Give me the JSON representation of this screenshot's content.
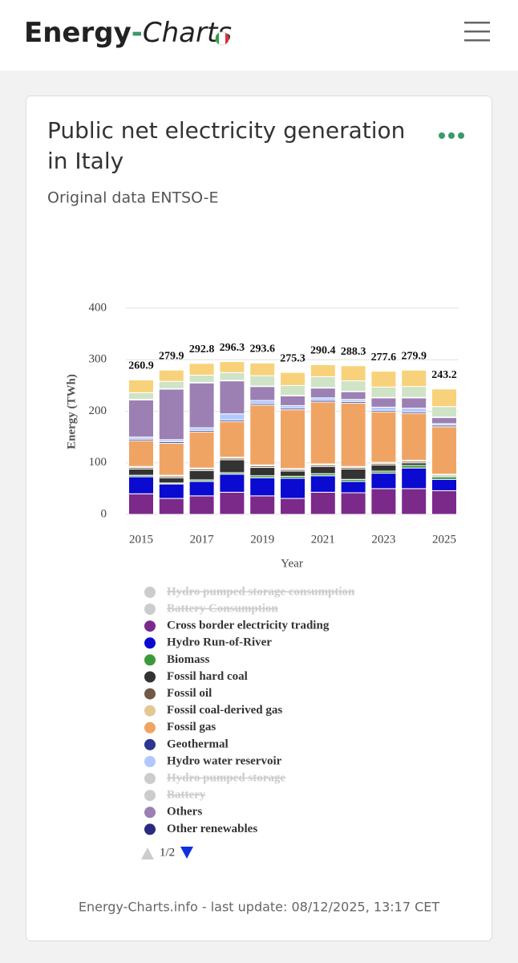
{
  "header": {
    "logo": [
      "Energy",
      "-",
      "Charts"
    ]
  },
  "chart_data": {
    "type": "stacked_bar",
    "title": [
      "Public net electricity generation",
      "in Italy"
    ],
    "subtitle": "Original data ENTSO-E",
    "x_label": "Year",
    "y_label": "Energy (TWh)",
    "categories": [
      "2015",
      null,
      "2017",
      null,
      "2019",
      null,
      "2021",
      null,
      "2023",
      null,
      "2025"
    ],
    "ylim": [
      0,
      400
    ],
    "yticks": [
      0,
      100,
      200,
      300,
      400
    ],
    "grid": true,
    "totals": [
      260.9,
      279.9,
      292.8,
      296.3,
      293.6,
      275.3,
      290.4,
      288.3,
      277.6,
      279.9,
      243.2
    ],
    "series": [
      {
        "name": "Hydro pumped storage consumption",
        "visible": false
      },
      {
        "name": "Battery Consumption",
        "visible": false
      },
      {
        "name": "Cross border electricity trading",
        "color": "#7b2a8a",
        "values": [
          40,
          31,
          36,
          43,
          36,
          31,
          43,
          42,
          50,
          50,
          46
        ]
      },
      {
        "name": "Hydro Run-of-River",
        "color": "#0a0ad0",
        "values": [
          33,
          28,
          28,
          35,
          35,
          39,
          32,
          22,
          30,
          40,
          22
        ]
      },
      {
        "name": "Biomass",
        "color": "#3a9a3a",
        "values": [
          3,
          2,
          3,
          3,
          4,
          4,
          4,
          4,
          4,
          5,
          5
        ]
      },
      {
        "name": "Fossil hard coal",
        "color": "#333333",
        "values": [
          12,
          10,
          18,
          25,
          16,
          10,
          14,
          20,
          12,
          5,
          2
        ]
      },
      {
        "name": "Fossil oil",
        "color": "#705a45",
        "values": [
          3,
          3,
          3,
          3,
          3,
          3,
          3,
          3,
          3,
          3,
          2
        ]
      },
      {
        "name": "Fossil coal-derived gas",
        "color": "#e0c890",
        "values": [
          2,
          2,
          2,
          2,
          2,
          2,
          2,
          2,
          2,
          2,
          1
        ]
      },
      {
        "name": "Fossil gas",
        "color": "#f0a464",
        "values": [
          50,
          62,
          70,
          69,
          116,
          114,
          120,
          123,
          98,
          91,
          92
        ]
      },
      {
        "name": "Geothermal",
        "color": "#2c3590",
        "values": [
          3,
          3,
          3,
          3,
          3,
          3,
          3,
          3,
          3,
          3,
          3
        ]
      },
      {
        "name": "Hydro water reservoir",
        "color": "#b0c8ff",
        "values": [
          4,
          4,
          5,
          12,
          6,
          5,
          5,
          4,
          6,
          7,
          3
        ]
      },
      {
        "name": "Hydro pumped storage",
        "visible": false
      },
      {
        "name": "Battery",
        "visible": false
      },
      {
        "name": "Others",
        "color": "#9c80b4",
        "values": [
          72,
          98,
          87,
          64,
          27,
          19,
          19,
          15,
          18,
          20,
          12
        ]
      },
      {
        "name": "Other renewables",
        "color": "#2a2a80",
        "values": [
          1,
          1,
          1,
          1,
          1,
          1,
          1,
          1,
          1,
          1,
          1
        ]
      },
      {
        "color": "#cfe3c6",
        "values": [
          13,
          14,
          14,
          15,
          20,
          19,
          21,
          20,
          20,
          21,
          20
        ]
      },
      {
        "color": "#f8d27a",
        "values": [
          24.9,
          21.9,
          22.8,
          21.3,
          24.6,
          25.3,
          23.4,
          29.3,
          30.6,
          31.9,
          34.2
        ]
      }
    ],
    "legend_page": "1/2",
    "footer": "Energy-Charts.info - last update: 08/12/2025, 13:17 CET"
  }
}
